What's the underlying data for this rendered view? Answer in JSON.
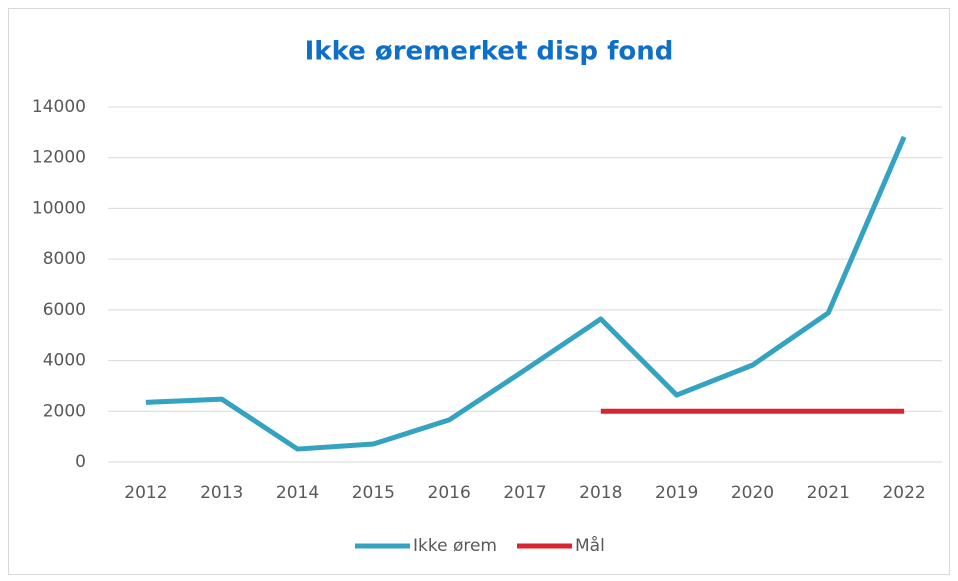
{
  "chart_data": {
    "type": "line",
    "title": "Ikke øremerket disp fond",
    "categories": [
      "2012",
      "2013",
      "2014",
      "2015",
      "2016",
      "2017",
      "2018",
      "2019",
      "2020",
      "2021",
      "2022"
    ],
    "series": [
      {
        "name": "Ikke ørem",
        "color": "#33a3c1",
        "values": [
          2350,
          2480,
          510,
          710,
          1660,
          3630,
          5640,
          2640,
          3820,
          5880,
          12820
        ]
      },
      {
        "name": "Mål",
        "color": "#d9262e",
        "values": [
          null,
          null,
          null,
          null,
          null,
          null,
          2000,
          2000,
          2000,
          2000,
          2000
        ]
      }
    ],
    "ylim": [
      0,
      14000
    ],
    "yticks": [
      0,
      2000,
      4000,
      6000,
      8000,
      10000,
      12000,
      14000
    ],
    "grid": true,
    "legend": "bottom"
  }
}
